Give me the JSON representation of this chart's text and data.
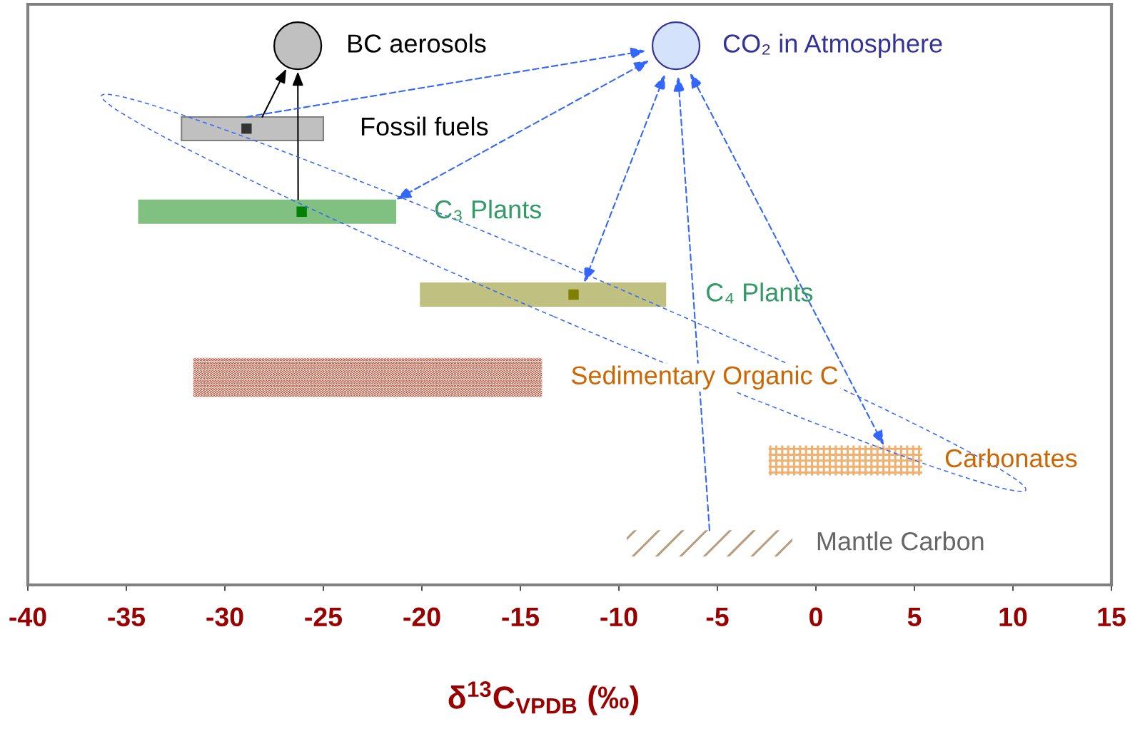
{
  "chart_data": {
    "type": "bar",
    "orientation": "horizontal",
    "xlabel": "δ$^{13}$C$_{VPDB}$ (‰)",
    "categories": [
      null,
      "Fossil fuels",
      "C₃ Plants",
      "C₄ Plants",
      "Sedimentary Organic C",
      "Carbonates",
      "Mantle Carbon"
    ],
    "series": [
      {
        "values": [
          null,
          7.2,
          13.1,
          12.5,
          17.7,
          7.8,
          8.4
        ],
        "base": [
          null,
          -32.2,
          -34.4,
          -20.1,
          -31.6,
          -2.4,
          -9.6
        ],
        "colors": [
          null,
          "#c0c0c0",
          "#80c080",
          "#c0c080",
          "#a8361a",
          "#f0b070",
          "#b89e7e"
        ]
      },
      {
        "type": "scatter",
        "marker": "square",
        "values": [
          null,
          -28.9,
          -26.1,
          -12.3,
          null,
          null,
          null
        ],
        "colors": [
          null,
          "#333333",
          "#008000",
          "#808000",
          null,
          null,
          null
        ]
      },
      {
        "type": "bubble",
        "marker": "circle",
        "name": "BC aerosols",
        "color": "#c0c0c0",
        "values": [
          -26.3,
          null,
          null,
          null,
          null,
          null,
          null
        ],
        "sizes": [
          1,
          null,
          null,
          null,
          null,
          null,
          null
        ]
      },
      {
        "type": "bubble",
        "marker": "circle",
        "name": "CO₂ in Atmosphere",
        "color": "#d4e2fc",
        "values": [
          -7.1,
          null,
          null,
          null,
          null,
          null,
          null
        ],
        "sizes": [
          1,
          null,
          null,
          null,
          null,
          null,
          null
        ]
      }
    ],
    "xlim": [
      -40,
      15
    ],
    "xticks": [
      -40,
      -35,
      -30,
      -25,
      -20,
      -15,
      -10,
      -5,
      0,
      5,
      10,
      15
    ],
    "tick_labels": "x"
  }
}
